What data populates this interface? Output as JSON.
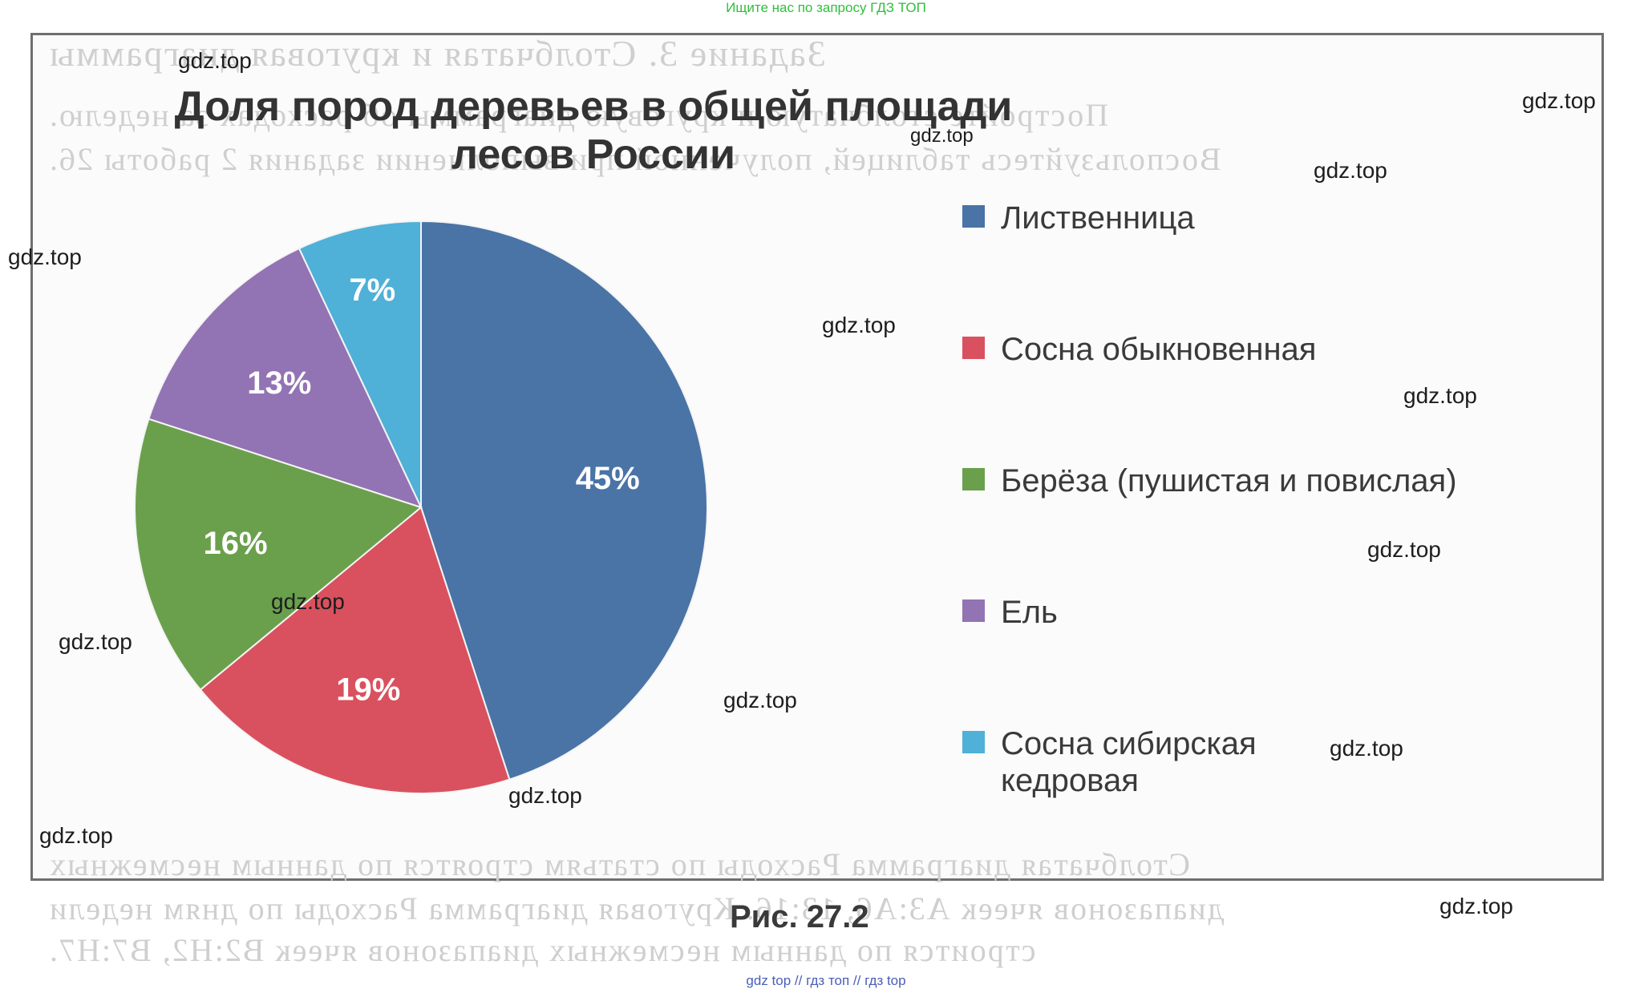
{
  "top_note": "Ищите нас по запросу ГДЗ ТОП",
  "bottom_note": "gdz top  //  гдз топ  //  гдз top",
  "figure_caption": "Рис.  27.2",
  "watermark": "gdz.top",
  "colors": {
    "larch": "#4a73a6",
    "scots_pine": "#d9515e",
    "birch": "#6aa04c",
    "spruce": "#9273b4",
    "siberian_pine": "#4fb0d8"
  },
  "chart_data": {
    "type": "pie",
    "title": "Доля пород деревьев в общей площади лесов России",
    "title_lines": [
      "Доля пород деревьев в общей площади",
      "лесов России"
    ],
    "slices": [
      {
        "label": "Лиственница",
        "value": 45,
        "value_label": "45%",
        "color": "#4a73a6"
      },
      {
        "label": "Сосна  обыкновенная",
        "value": 19,
        "value_label": "19%",
        "color": "#d9515e"
      },
      {
        "label": "Берёза  (пушистая  и  повислая)",
        "value": 16,
        "value_label": "16%",
        "color": "#6aa04c"
      },
      {
        "label": "Ель",
        "value": 13,
        "value_label": "13%",
        "color": "#9273b4"
      },
      {
        "label": "Сосна  сибирская  кедровая",
        "label_lines": [
          "Сосна  сибирская",
          "кедровая"
        ],
        "value": 7,
        "value_label": "7%",
        "color": "#4fb0d8"
      }
    ],
    "legend_position": "right",
    "start_angle": "top",
    "direction": "clockwise"
  }
}
